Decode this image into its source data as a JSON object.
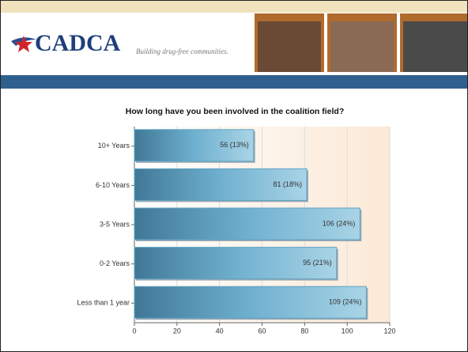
{
  "header": {
    "logo": "CADCA",
    "tagline": "Building drug-free communities."
  },
  "chart_data": {
    "type": "hbar",
    "title": "How long have you been involved in the coalition field?",
    "categories": [
      "10+ Years",
      "6-10 Years",
      "3-5 Years",
      "0-2 Years",
      "Less than 1 year"
    ],
    "values": [
      56,
      81,
      106,
      95,
      109
    ],
    "value_labels": [
      "56 (13%)",
      "81 (18%)",
      "106 (24%)",
      "95 (21%)",
      "109 (24%)"
    ],
    "color": "#5fa3c4",
    "xlim": [
      0,
      120
    ],
    "xticks": [
      0,
      20,
      40,
      60,
      80,
      100,
      120
    ],
    "grid": true
  }
}
